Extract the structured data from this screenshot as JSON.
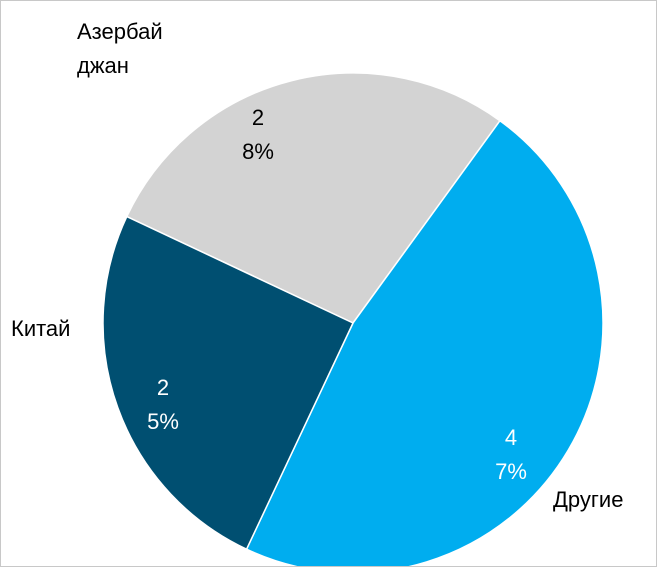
{
  "chart_data": {
    "type": "pie",
    "categories": [
      "Азербайджан",
      "Другие",
      "Китай"
    ],
    "values": [
      28,
      47,
      25
    ],
    "value_labels": [
      "28%",
      "47%",
      "25%"
    ],
    "colors": [
      "#d3d3d3",
      "#00adef",
      "#004f71"
    ]
  }
}
